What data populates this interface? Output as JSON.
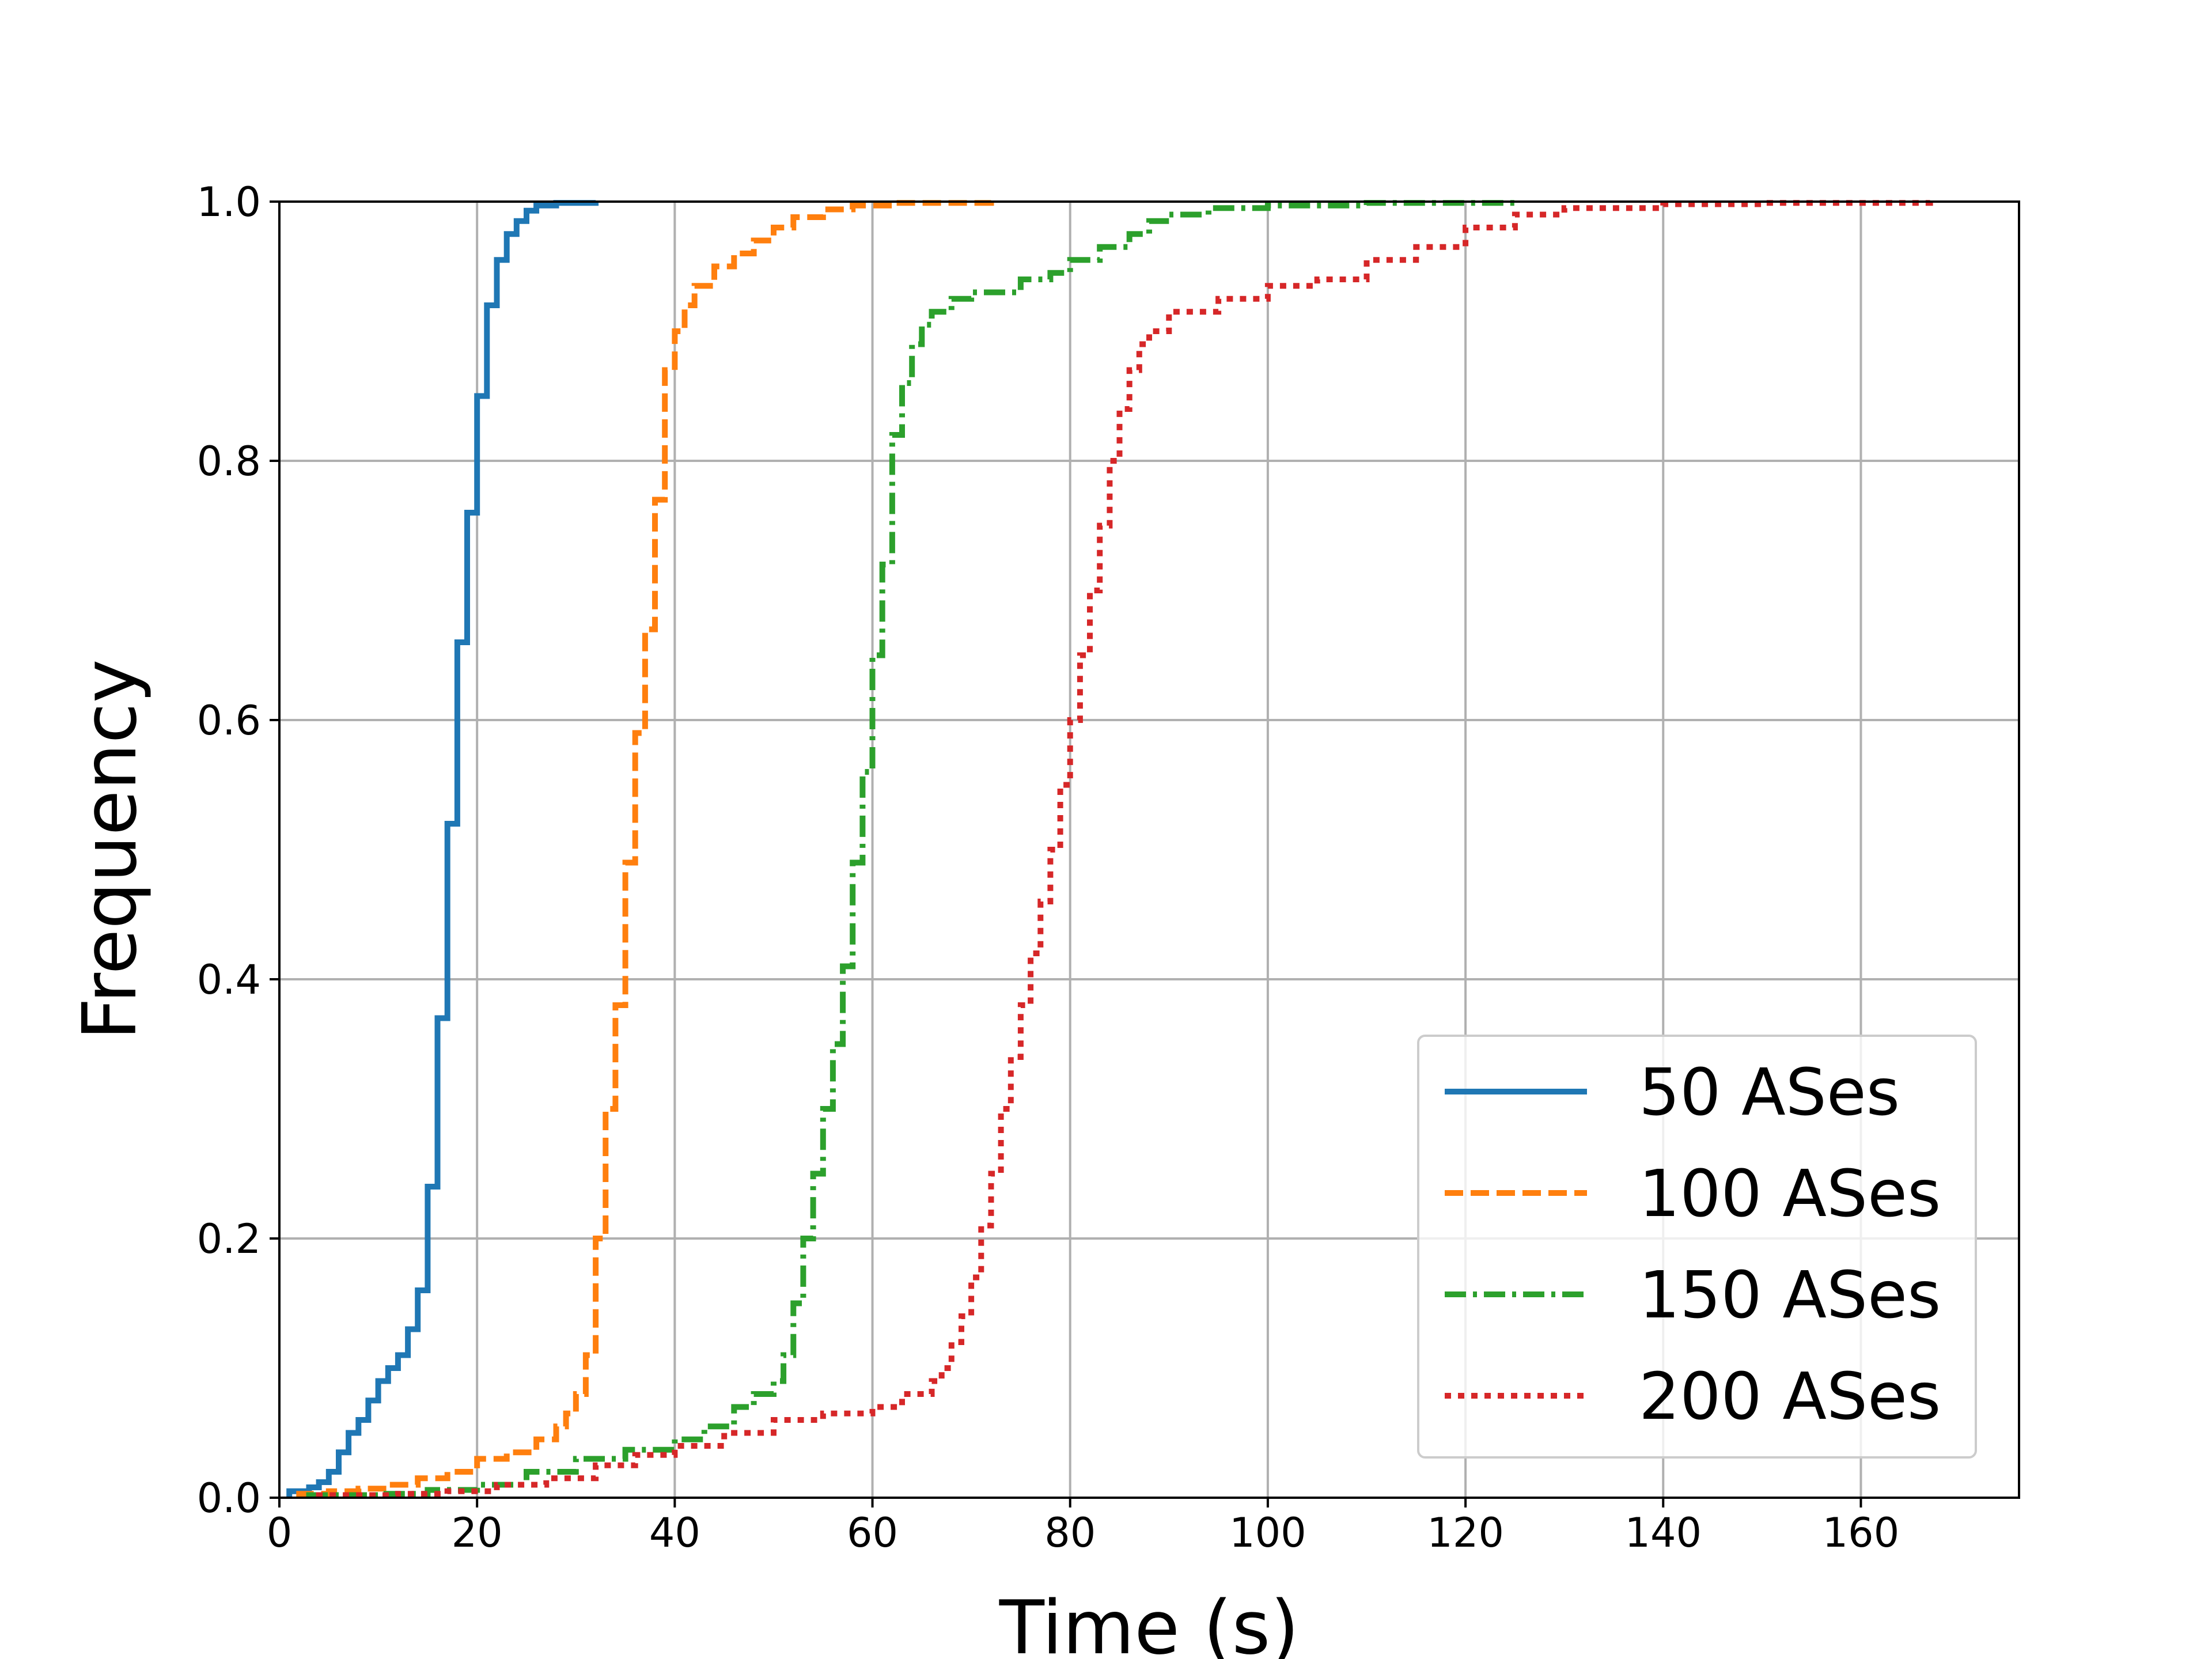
{
  "chart_data": {
    "type": "line",
    "title": "",
    "xlabel": "Time (s)",
    "ylabel": "Frequency",
    "xlim": [
      0,
      176
    ],
    "ylim": [
      0,
      1
    ],
    "xticks": [
      0,
      20,
      40,
      60,
      80,
      100,
      120,
      140,
      160
    ],
    "yticks": [
      0.0,
      0.2,
      0.4,
      0.6,
      0.8,
      1.0
    ],
    "xtick_labels": [
      "0",
      "20",
      "40",
      "60",
      "80",
      "100",
      "120",
      "140",
      "160"
    ],
    "ytick_labels": [
      "0.0",
      "0.2",
      "0.4",
      "0.6",
      "0.8",
      "1.0"
    ],
    "grid": true,
    "legend_position": "lower-right",
    "series": [
      {
        "name": "50 ASes",
        "color": "#1f77b4",
        "style": "solid",
        "step": true,
        "points": [
          [
            1,
            0
          ],
          [
            1,
            0.005
          ],
          [
            3,
            0.008
          ],
          [
            4,
            0.012
          ],
          [
            5,
            0.02
          ],
          [
            6,
            0.035
          ],
          [
            7,
            0.05
          ],
          [
            8,
            0.06
          ],
          [
            9,
            0.075
          ],
          [
            10,
            0.09
          ],
          [
            11,
            0.1
          ],
          [
            12,
            0.11
          ],
          [
            13,
            0.13
          ],
          [
            14,
            0.16
          ],
          [
            15,
            0.24
          ],
          [
            16,
            0.37
          ],
          [
            17,
            0.52
          ],
          [
            18,
            0.66
          ],
          [
            19,
            0.76
          ],
          [
            20,
            0.85
          ],
          [
            21,
            0.92
          ],
          [
            22,
            0.955
          ],
          [
            23,
            0.975
          ],
          [
            24,
            0.985
          ],
          [
            25,
            0.993
          ],
          [
            26,
            0.997
          ],
          [
            28,
            0.999
          ],
          [
            32,
            1.0
          ]
        ]
      },
      {
        "name": "100 ASes",
        "color": "#ff7f0e",
        "style": "dashed",
        "step": true,
        "points": [
          [
            2,
            0
          ],
          [
            2,
            0.003
          ],
          [
            5,
            0.005
          ],
          [
            8,
            0.007
          ],
          [
            11,
            0.01
          ],
          [
            14,
            0.015
          ],
          [
            17,
            0.02
          ],
          [
            20,
            0.03
          ],
          [
            23,
            0.035
          ],
          [
            26,
            0.045
          ],
          [
            28,
            0.055
          ],
          [
            29,
            0.065
          ],
          [
            30,
            0.08
          ],
          [
            31,
            0.11
          ],
          [
            32,
            0.2
          ],
          [
            33,
            0.3
          ],
          [
            34,
            0.38
          ],
          [
            35,
            0.49
          ],
          [
            36,
            0.59
          ],
          [
            37,
            0.67
          ],
          [
            38,
            0.77
          ],
          [
            39,
            0.87
          ],
          [
            40,
            0.9
          ],
          [
            41,
            0.92
          ],
          [
            42,
            0.935
          ],
          [
            44,
            0.95
          ],
          [
            46,
            0.96
          ],
          [
            48,
            0.97
          ],
          [
            50,
            0.98
          ],
          [
            52,
            0.988
          ],
          [
            55,
            0.994
          ],
          [
            58,
            0.997
          ],
          [
            62,
            0.999
          ],
          [
            72,
            1.0
          ]
        ]
      },
      {
        "name": "150 ASes",
        "color": "#2ca02c",
        "style": "dashdot",
        "step": true,
        "points": [
          [
            3,
            0
          ],
          [
            3,
            0.002
          ],
          [
            10,
            0.003
          ],
          [
            15,
            0.006
          ],
          [
            20,
            0.01
          ],
          [
            25,
            0.02
          ],
          [
            30,
            0.03
          ],
          [
            35,
            0.037
          ],
          [
            40,
            0.045
          ],
          [
            43,
            0.055
          ],
          [
            46,
            0.07
          ],
          [
            48,
            0.08
          ],
          [
            50,
            0.09
          ],
          [
            51,
            0.11
          ],
          [
            52,
            0.15
          ],
          [
            53,
            0.2
          ],
          [
            54,
            0.25
          ],
          [
            55,
            0.3
          ],
          [
            56,
            0.35
          ],
          [
            57,
            0.41
          ],
          [
            58,
            0.49
          ],
          [
            59,
            0.56
          ],
          [
            60,
            0.65
          ],
          [
            61,
            0.72
          ],
          [
            62,
            0.82
          ],
          [
            63,
            0.86
          ],
          [
            64,
            0.89
          ],
          [
            65,
            0.905
          ],
          [
            66,
            0.915
          ],
          [
            68,
            0.925
          ],
          [
            70,
            0.93
          ],
          [
            75,
            0.94
          ],
          [
            78,
            0.945
          ],
          [
            80,
            0.955
          ],
          [
            83,
            0.965
          ],
          [
            86,
            0.975
          ],
          [
            88,
            0.985
          ],
          [
            90,
            0.99
          ],
          [
            94,
            0.995
          ],
          [
            100,
            0.997
          ],
          [
            110,
            0.999
          ],
          [
            125,
            1.0
          ]
        ]
      },
      {
        "name": "200 ASes",
        "color": "#d62728",
        "style": "dotted",
        "step": true,
        "points": [
          [
            4,
            0
          ],
          [
            4,
            0.002
          ],
          [
            12,
            0.003
          ],
          [
            17,
            0.005
          ],
          [
            22,
            0.01
          ],
          [
            27,
            0.015
          ],
          [
            32,
            0.025
          ],
          [
            36,
            0.033
          ],
          [
            40,
            0.04
          ],
          [
            45,
            0.05
          ],
          [
            50,
            0.06
          ],
          [
            55,
            0.065
          ],
          [
            60,
            0.07
          ],
          [
            63,
            0.08
          ],
          [
            66,
            0.09
          ],
          [
            67,
            0.1
          ],
          [
            68,
            0.12
          ],
          [
            69,
            0.14
          ],
          [
            70,
            0.17
          ],
          [
            71,
            0.21
          ],
          [
            72,
            0.25
          ],
          [
            73,
            0.3
          ],
          [
            74,
            0.34
          ],
          [
            75,
            0.38
          ],
          [
            76,
            0.42
          ],
          [
            77,
            0.46
          ],
          [
            78,
            0.5
          ],
          [
            79,
            0.55
          ],
          [
            80,
            0.6
          ],
          [
            81,
            0.65
          ],
          [
            82,
            0.7
          ],
          [
            83,
            0.75
          ],
          [
            84,
            0.8
          ],
          [
            85,
            0.84
          ],
          [
            86,
            0.87
          ],
          [
            87,
            0.89
          ],
          [
            88,
            0.9
          ],
          [
            90,
            0.915
          ],
          [
            95,
            0.925
          ],
          [
            100,
            0.935
          ],
          [
            105,
            0.94
          ],
          [
            110,
            0.955
          ],
          [
            115,
            0.965
          ],
          [
            120,
            0.98
          ],
          [
            125,
            0.99
          ],
          [
            130,
            0.995
          ],
          [
            140,
            0.998
          ],
          [
            150,
            0.999
          ],
          [
            167,
            1.0
          ]
        ]
      }
    ]
  }
}
